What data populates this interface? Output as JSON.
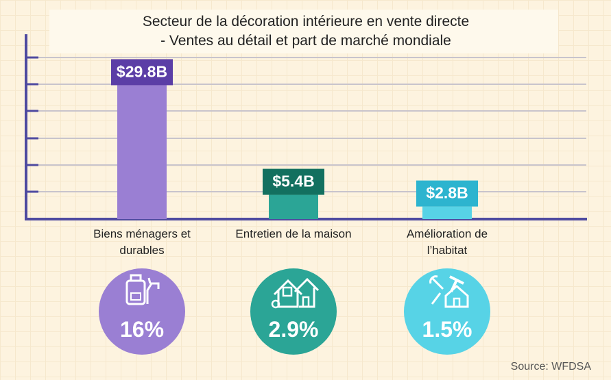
{
  "chart_data": {
    "type": "bar",
    "title": "Secteur de la décoration intérieure en vente directe",
    "subtitle": "- Ventes au détail et part de marché mondiale",
    "categories": [
      "Biens ménagers et durables",
      "Entretien de la maison",
      "Amélioration de l’habitat"
    ],
    "values": [
      29.8,
      5.4,
      2.8
    ],
    "value_labels": [
      "$29.8B",
      "$5.4B",
      "$2.8B"
    ],
    "colors": [
      "#9a7fd3",
      "#2ba596",
      "#57d3e6"
    ],
    "label_colors": [
      "#5b3ea6",
      "#13705f",
      "#2db4cf"
    ],
    "ylim": [
      0,
      32
    ],
    "market_share": [
      16,
      2.9,
      1.5
    ],
    "market_share_labels": [
      "16%",
      "2.9%",
      "1.5%"
    ],
    "source": "Source: WFDSA"
  }
}
